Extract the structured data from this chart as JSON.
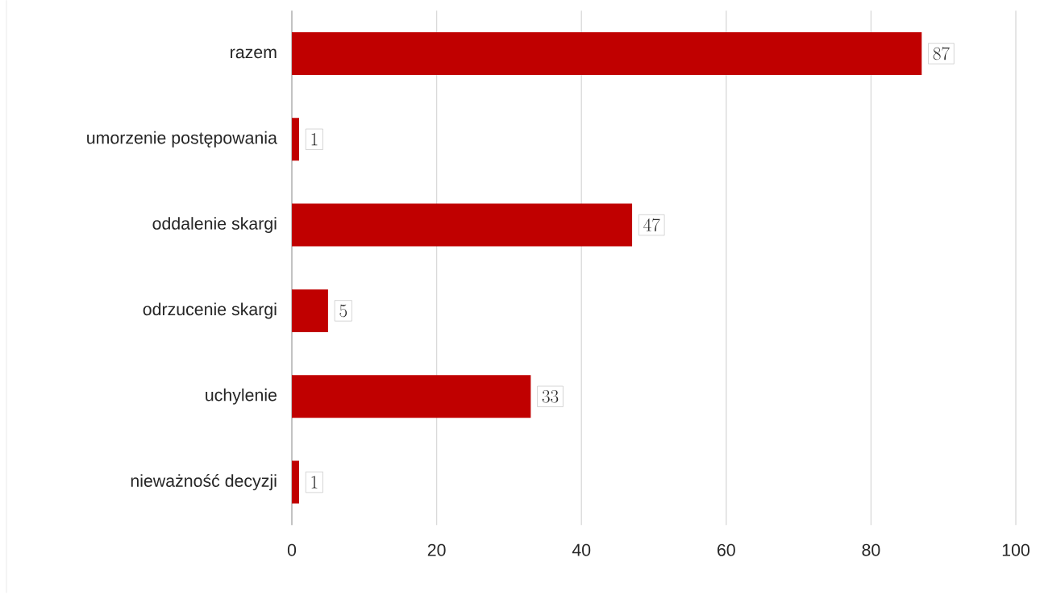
{
  "chart_data": {
    "type": "bar",
    "orientation": "horizontal",
    "categories": [
      "razem",
      "umorzenie postępowania",
      "oddalenie skargi",
      "odrzucenie skargi",
      "uchylenie",
      "nieważność decyzji"
    ],
    "values": [
      87,
      1,
      47,
      5,
      33,
      1
    ],
    "color": "#c00000",
    "xlim": [
      0,
      100
    ],
    "xticks": [
      0,
      20,
      40,
      60,
      80,
      100
    ],
    "grid": "x",
    "data_labels": true
  }
}
